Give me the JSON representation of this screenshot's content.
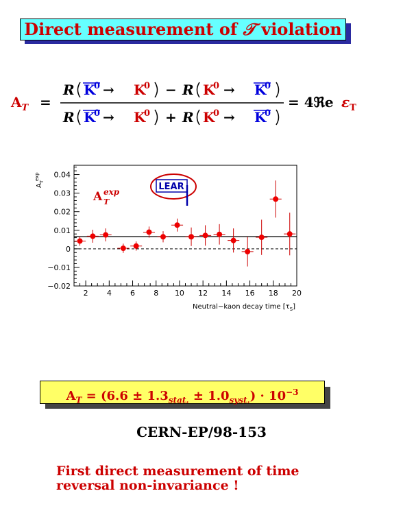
{
  "title": {
    "prefix": "Direct measurement of",
    "symbol": "𝒯",
    "suffix": "violation"
  },
  "formula": {
    "lhs": "A",
    "lhs_sub": "T",
    "R": "R",
    "K0": "K",
    "K0_sup": "0",
    "arrow": "→",
    "minus": "−",
    "plus": "+",
    "rhs": "= 4ℜe",
    "eps": "ε",
    "eps_sub": "T"
  },
  "colors": {
    "red": "#cc0000",
    "blue": "#0000dd",
    "title_bg": "#66ffff",
    "result_bg": "#ffff66"
  },
  "chart_data": {
    "type": "scatter",
    "title": "A",
    "title_sup": "exp",
    "title_sub": "T",
    "ylabel": "A",
    "ylabel_sub": "T",
    "ylabel_sup": "exp",
    "xlabel": "Neutral−kaon decay time  [τ",
    "xlabel_sub": "S",
    "xlabel_end": "]",
    "xlim": [
      1,
      20
    ],
    "ylim": [
      -0.02,
      0.045
    ],
    "xticks": [
      "2",
      "4",
      "6",
      "8",
      "10",
      "12",
      "14",
      "16",
      "18",
      "20"
    ],
    "yticks": [
      "0.04",
      "0.03",
      "0.02",
      "0.01",
      "0",
      "−0.01",
      "−0.02"
    ],
    "ytick_values": [
      0.04,
      0.03,
      0.02,
      0.01,
      0,
      -0.01,
      -0.02
    ],
    "fit_level": 0.0066,
    "reference_level": 0,
    "points": [
      {
        "x": 1.5,
        "y": 0.0042,
        "xerr": 0.5,
        "yerr": 0.0025
      },
      {
        "x": 2.6,
        "y": 0.0068,
        "xerr": 0.5,
        "yerr": 0.0035
      },
      {
        "x": 3.7,
        "y": 0.0075,
        "xerr": 0.5,
        "yerr": 0.0035
      },
      {
        "x": 5.2,
        "y": 0.0003,
        "xerr": 0.5,
        "yerr": 0.0025
      },
      {
        "x": 6.3,
        "y": 0.0015,
        "xerr": 0.5,
        "yerr": 0.0025
      },
      {
        "x": 7.4,
        "y": 0.009,
        "xerr": 0.5,
        "yerr": 0.003
      },
      {
        "x": 8.6,
        "y": 0.0065,
        "xerr": 0.5,
        "yerr": 0.003
      },
      {
        "x": 9.8,
        "y": 0.0128,
        "xerr": 0.5,
        "yerr": 0.0035
      },
      {
        "x": 11.0,
        "y": 0.0065,
        "xerr": 0.5,
        "yerr": 0.005
      },
      {
        "x": 12.2,
        "y": 0.0072,
        "xerr": 0.5,
        "yerr": 0.0055
      },
      {
        "x": 13.4,
        "y": 0.0078,
        "xerr": 0.5,
        "yerr": 0.0055
      },
      {
        "x": 14.6,
        "y": 0.0045,
        "xerr": 0.5,
        "yerr": 0.0065
      },
      {
        "x": 15.8,
        "y": -0.0015,
        "xerr": 0.5,
        "yerr": 0.008
      },
      {
        "x": 17.0,
        "y": 0.0062,
        "xerr": 0.5,
        "yerr": 0.0095
      },
      {
        "x": 18.2,
        "y": 0.0268,
        "xerr": 0.5,
        "yerr": 0.01
      },
      {
        "x": 19.4,
        "y": 0.008,
        "xerr": 0.5,
        "yerr": 0.0115
      }
    ],
    "logo": "LEAR"
  },
  "result": {
    "lhs": "A",
    "lhs_sub": "T",
    "text": "= (6.6 ± 1.3",
    "stat": "stat.",
    "pm": " ± 1.0",
    "syst": "syst.",
    "tail": ") · 10",
    "exp": "−3"
  },
  "reference": "CERN-EP/98-153",
  "note": {
    "line1": "First direct measurement of time",
    "line2": "reversal non-invariance !"
  }
}
